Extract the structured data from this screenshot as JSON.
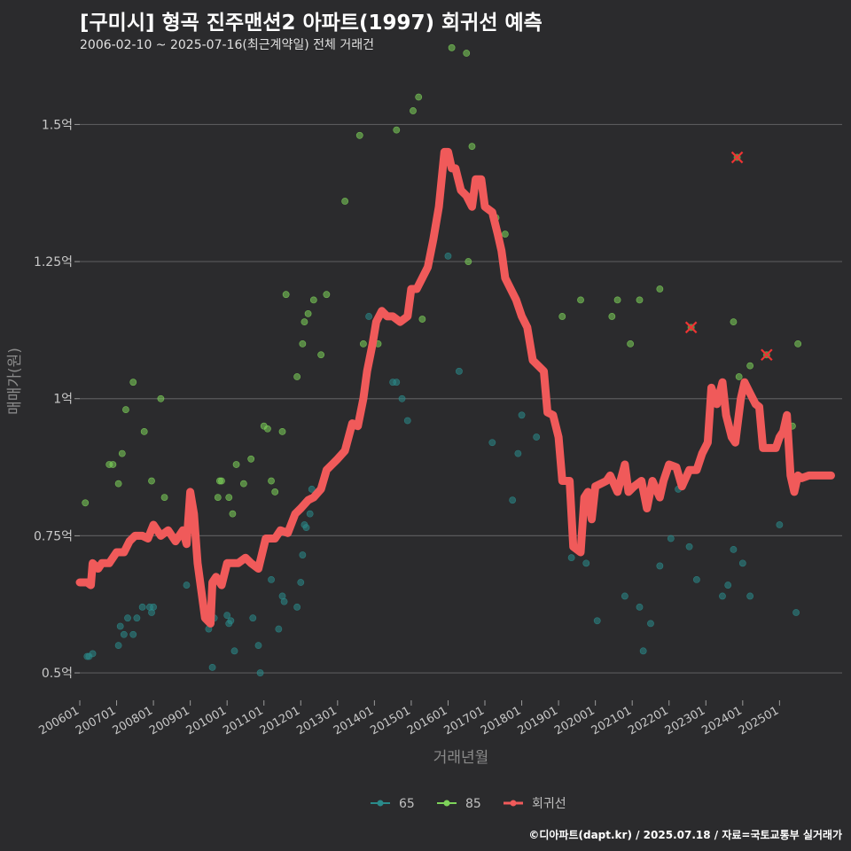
{
  "title": "[구미시] 형곡 진주맨션2 아파트(1997) 회귀선 예측",
  "subtitle": "2006-02-10 ~ 2025-07-16(최근계약일) 전체 거래건",
  "footer": "©디아파트(dapt.kr) / 2025.07.18 / 자료=국토교통부 실거래가",
  "chart_data": {
    "type": "scatter",
    "xlabel": "거래년월",
    "ylabel": "매매가(원)",
    "xlim": [
      2006.0,
      2026.7
    ],
    "ylim": [
      0.45,
      1.63
    ],
    "yticks": [
      {
        "value": 0.5,
        "label": "0.5억"
      },
      {
        "value": 0.75,
        "label": "0.75억"
      },
      {
        "value": 1.0,
        "label": "1억"
      },
      {
        "value": 1.25,
        "label": "1.25억"
      },
      {
        "value": 1.5,
        "label": "1.5억"
      }
    ],
    "xticks": [
      {
        "value": 2006.0,
        "label": "200601"
      },
      {
        "value": 2007.0,
        "label": "200701"
      },
      {
        "value": 2008.0,
        "label": "200801"
      },
      {
        "value": 2009.0,
        "label": "200901"
      },
      {
        "value": 2010.0,
        "label": "201001"
      },
      {
        "value": 2011.0,
        "label": "201101"
      },
      {
        "value": 2012.0,
        "label": "201201"
      },
      {
        "value": 2013.0,
        "label": "201301"
      },
      {
        "value": 2014.0,
        "label": "201401"
      },
      {
        "value": 2015.0,
        "label": "201501"
      },
      {
        "value": 2016.0,
        "label": "201601"
      },
      {
        "value": 2017.0,
        "label": "201701"
      },
      {
        "value": 2018.0,
        "label": "201801"
      },
      {
        "value": 2019.0,
        "label": "201901"
      },
      {
        "value": 2020.0,
        "label": "202001"
      },
      {
        "value": 2021.0,
        "label": "202101"
      },
      {
        "value": 2022.0,
        "label": "202201"
      },
      {
        "value": 2023.0,
        "label": "202301"
      },
      {
        "value": 2024.0,
        "label": "202401"
      },
      {
        "value": 2025.0,
        "label": "202501"
      }
    ],
    "legend_position": "bottom",
    "series": [
      {
        "name": "65",
        "color": "#2a8a8a",
        "points": [
          [
            2006.2,
            0.53
          ],
          [
            2006.25,
            0.53
          ],
          [
            2006.35,
            0.535
          ],
          [
            2007.05,
            0.55
          ],
          [
            2007.1,
            0.585
          ],
          [
            2007.2,
            0.57
          ],
          [
            2007.3,
            0.6
          ],
          [
            2007.45,
            0.57
          ],
          [
            2007.55,
            0.6
          ],
          [
            2007.7,
            0.62
          ],
          [
            2007.9,
            0.62
          ],
          [
            2007.95,
            0.61
          ],
          [
            2008.0,
            0.62
          ],
          [
            2008.9,
            0.66
          ],
          [
            2009.5,
            0.58
          ],
          [
            2009.6,
            0.51
          ],
          [
            2009.65,
            0.6
          ],
          [
            2010.0,
            0.605
          ],
          [
            2010.05,
            0.59
          ],
          [
            2010.1,
            0.595
          ],
          [
            2010.2,
            0.54
          ],
          [
            2010.7,
            0.6
          ],
          [
            2010.85,
            0.55
          ],
          [
            2010.9,
            0.5
          ],
          [
            2011.2,
            0.67
          ],
          [
            2011.4,
            0.58
          ],
          [
            2011.5,
            0.64
          ],
          [
            2011.55,
            0.63
          ],
          [
            2011.9,
            0.62
          ],
          [
            2012.0,
            0.665
          ],
          [
            2012.05,
            0.715
          ],
          [
            2012.1,
            0.77
          ],
          [
            2012.15,
            0.765
          ],
          [
            2012.25,
            0.79
          ],
          [
            2012.3,
            0.835
          ],
          [
            2013.85,
            1.15
          ],
          [
            2014.5,
            1.03
          ],
          [
            2014.6,
            1.03
          ],
          [
            2014.75,
            1.0
          ],
          [
            2014.9,
            0.96
          ],
          [
            2016.0,
            1.26
          ],
          [
            2016.3,
            1.05
          ],
          [
            2017.2,
            0.92
          ],
          [
            2017.75,
            0.815
          ],
          [
            2017.9,
            0.9
          ],
          [
            2018.0,
            0.97
          ],
          [
            2018.4,
            0.93
          ],
          [
            2019.35,
            0.71
          ],
          [
            2019.75,
            0.7
          ],
          [
            2020.05,
            0.595
          ],
          [
            2020.8,
            0.64
          ],
          [
            2021.2,
            0.62
          ],
          [
            2021.3,
            0.54
          ],
          [
            2021.5,
            0.59
          ],
          [
            2021.75,
            0.695
          ],
          [
            2022.05,
            0.745
          ],
          [
            2022.25,
            0.835
          ],
          [
            2022.55,
            0.73
          ],
          [
            2022.75,
            0.67
          ],
          [
            2023.45,
            0.64
          ],
          [
            2023.6,
            0.66
          ],
          [
            2023.75,
            0.725
          ],
          [
            2024.0,
            0.7
          ],
          [
            2024.2,
            0.64
          ],
          [
            2025.0,
            0.77
          ],
          [
            2025.45,
            0.61
          ]
        ]
      },
      {
        "name": "85",
        "color": "#7ed35a",
        "points": [
          [
            2006.15,
            0.81
          ],
          [
            2006.8,
            0.88
          ],
          [
            2006.9,
            0.88
          ],
          [
            2007.05,
            0.845
          ],
          [
            2007.15,
            0.9
          ],
          [
            2007.25,
            0.98
          ],
          [
            2007.45,
            1.03
          ],
          [
            2007.75,
            0.94
          ],
          [
            2007.95,
            0.85
          ],
          [
            2008.2,
            1.0
          ],
          [
            2008.3,
            0.82
          ],
          [
            2009.75,
            0.82
          ],
          [
            2009.8,
            0.85
          ],
          [
            2009.85,
            0.85
          ],
          [
            2010.05,
            0.82
          ],
          [
            2010.15,
            0.79
          ],
          [
            2010.25,
            0.88
          ],
          [
            2010.45,
            0.845
          ],
          [
            2010.65,
            0.89
          ],
          [
            2011.0,
            0.95
          ],
          [
            2011.1,
            0.945
          ],
          [
            2011.2,
            0.85
          ],
          [
            2011.3,
            0.83
          ],
          [
            2011.5,
            0.94
          ],
          [
            2011.6,
            1.19
          ],
          [
            2011.9,
            1.04
          ],
          [
            2012.05,
            1.1
          ],
          [
            2012.1,
            1.14
          ],
          [
            2012.2,
            1.155
          ],
          [
            2012.35,
            1.18
          ],
          [
            2012.55,
            1.08
          ],
          [
            2012.7,
            1.19
          ],
          [
            2013.2,
            1.36
          ],
          [
            2013.6,
            1.48
          ],
          [
            2013.7,
            1.1
          ],
          [
            2014.1,
            1.1
          ],
          [
            2014.6,
            1.49
          ],
          [
            2015.05,
            1.525
          ],
          [
            2015.2,
            1.55
          ],
          [
            2015.3,
            1.145
          ],
          [
            2016.1,
            1.64
          ],
          [
            2016.5,
            1.63
          ],
          [
            2016.55,
            1.25
          ],
          [
            2016.65,
            1.46
          ],
          [
            2016.8,
            1.4
          ],
          [
            2017.3,
            1.33
          ],
          [
            2017.55,
            1.3
          ],
          [
            2019.1,
            1.15
          ],
          [
            2019.6,
            1.18
          ],
          [
            2020.45,
            1.15
          ],
          [
            2020.6,
            1.18
          ],
          [
            2020.95,
            1.1
          ],
          [
            2021.2,
            1.18
          ],
          [
            2021.75,
            1.2
          ],
          [
            2023.75,
            1.14
          ],
          [
            2023.9,
            1.04
          ],
          [
            2024.2,
            1.06
          ],
          [
            2025.35,
            0.95
          ],
          [
            2025.5,
            1.1
          ]
        ]
      },
      {
        "name": "회귀선",
        "color": "#f05a5a",
        "line": [
          [
            2006.0,
            0.665
          ],
          [
            2006.2,
            0.665
          ],
          [
            2006.3,
            0.66
          ],
          [
            2006.35,
            0.7
          ],
          [
            2006.5,
            0.69
          ],
          [
            2006.6,
            0.7
          ],
          [
            2006.8,
            0.7
          ],
          [
            2007.0,
            0.72
          ],
          [
            2007.2,
            0.72
          ],
          [
            2007.35,
            0.74
          ],
          [
            2007.5,
            0.75
          ],
          [
            2007.7,
            0.75
          ],
          [
            2007.85,
            0.745
          ],
          [
            2008.0,
            0.77
          ],
          [
            2008.2,
            0.75
          ],
          [
            2008.4,
            0.76
          ],
          [
            2008.6,
            0.74
          ],
          [
            2008.8,
            0.76
          ],
          [
            2008.9,
            0.735
          ],
          [
            2009.0,
            0.83
          ],
          [
            2009.1,
            0.79
          ],
          [
            2009.2,
            0.7
          ],
          [
            2009.3,
            0.65
          ],
          [
            2009.4,
            0.6
          ],
          [
            2009.55,
            0.59
          ],
          [
            2009.6,
            0.665
          ],
          [
            2009.7,
            0.675
          ],
          [
            2009.85,
            0.66
          ],
          [
            2010.0,
            0.7
          ],
          [
            2010.3,
            0.7
          ],
          [
            2010.5,
            0.71
          ],
          [
            2010.65,
            0.7
          ],
          [
            2010.85,
            0.69
          ],
          [
            2011.05,
            0.745
          ],
          [
            2011.3,
            0.745
          ],
          [
            2011.45,
            0.76
          ],
          [
            2011.65,
            0.755
          ],
          [
            2011.85,
            0.79
          ],
          [
            2012.0,
            0.8
          ],
          [
            2012.2,
            0.815
          ],
          [
            2012.35,
            0.82
          ],
          [
            2012.55,
            0.835
          ],
          [
            2012.7,
            0.87
          ],
          [
            2012.85,
            0.88
          ],
          [
            2013.0,
            0.89
          ],
          [
            2013.2,
            0.905
          ],
          [
            2013.4,
            0.955
          ],
          [
            2013.55,
            0.95
          ],
          [
            2013.7,
            1.0
          ],
          [
            2013.8,
            1.05
          ],
          [
            2013.95,
            1.1
          ],
          [
            2014.05,
            1.14
          ],
          [
            2014.2,
            1.16
          ],
          [
            2014.35,
            1.15
          ],
          [
            2014.5,
            1.15
          ],
          [
            2014.7,
            1.14
          ],
          [
            2014.9,
            1.15
          ],
          [
            2015.0,
            1.2
          ],
          [
            2015.15,
            1.2
          ],
          [
            2015.3,
            1.22
          ],
          [
            2015.45,
            1.24
          ],
          [
            2015.6,
            1.29
          ],
          [
            2015.75,
            1.35
          ],
          [
            2015.9,
            1.45
          ],
          [
            2016.0,
            1.45
          ],
          [
            2016.1,
            1.42
          ],
          [
            2016.2,
            1.42
          ],
          [
            2016.35,
            1.38
          ],
          [
            2016.5,
            1.37
          ],
          [
            2016.65,
            1.35
          ],
          [
            2016.75,
            1.4
          ],
          [
            2016.9,
            1.4
          ],
          [
            2017.0,
            1.35
          ],
          [
            2017.2,
            1.34
          ],
          [
            2017.35,
            1.3
          ],
          [
            2017.45,
            1.27
          ],
          [
            2017.55,
            1.22
          ],
          [
            2017.7,
            1.2
          ],
          [
            2017.85,
            1.18
          ],
          [
            2018.0,
            1.15
          ],
          [
            2018.15,
            1.13
          ],
          [
            2018.3,
            1.07
          ],
          [
            2018.45,
            1.06
          ],
          [
            2018.6,
            1.05
          ],
          [
            2018.7,
            0.975
          ],
          [
            2018.85,
            0.97
          ],
          [
            2019.0,
            0.93
          ],
          [
            2019.1,
            0.85
          ],
          [
            2019.3,
            0.85
          ],
          [
            2019.4,
            0.73
          ],
          [
            2019.6,
            0.72
          ],
          [
            2019.7,
            0.82
          ],
          [
            2019.8,
            0.83
          ],
          [
            2019.9,
            0.78
          ],
          [
            2020.0,
            0.84
          ],
          [
            2020.3,
            0.85
          ],
          [
            2020.4,
            0.86
          ],
          [
            2020.6,
            0.83
          ],
          [
            2020.8,
            0.88
          ],
          [
            2020.9,
            0.83
          ],
          [
            2021.05,
            0.84
          ],
          [
            2021.25,
            0.85
          ],
          [
            2021.4,
            0.8
          ],
          [
            2021.55,
            0.85
          ],
          [
            2021.75,
            0.82
          ],
          [
            2021.85,
            0.85
          ],
          [
            2022.0,
            0.88
          ],
          [
            2022.2,
            0.875
          ],
          [
            2022.35,
            0.84
          ],
          [
            2022.55,
            0.87
          ],
          [
            2022.75,
            0.87
          ],
          [
            2022.9,
            0.9
          ],
          [
            2023.05,
            0.92
          ],
          [
            2023.15,
            1.02
          ],
          [
            2023.3,
            0.99
          ],
          [
            2023.45,
            1.03
          ],
          [
            2023.55,
            0.97
          ],
          [
            2023.7,
            0.93
          ],
          [
            2023.8,
            0.92
          ],
          [
            2023.95,
            1.0
          ],
          [
            2024.05,
            1.03
          ],
          [
            2024.2,
            1.01
          ],
          [
            2024.35,
            0.99
          ],
          [
            2024.45,
            0.985
          ],
          [
            2024.55,
            0.91
          ],
          [
            2024.75,
            0.91
          ],
          [
            2024.9,
            0.91
          ],
          [
            2025.0,
            0.93
          ],
          [
            2025.1,
            0.94
          ],
          [
            2025.2,
            0.97
          ],
          [
            2025.3,
            0.86
          ],
          [
            2025.4,
            0.83
          ],
          [
            2025.5,
            0.86
          ],
          [
            2025.6,
            0.855
          ],
          [
            2025.8,
            0.86
          ],
          [
            2026.4,
            0.86
          ]
        ]
      }
    ],
    "markers_x": [
      [
        2022.6,
        1.13
      ],
      [
        2023.85,
        1.44
      ],
      [
        2024.65,
        1.08
      ]
    ]
  }
}
